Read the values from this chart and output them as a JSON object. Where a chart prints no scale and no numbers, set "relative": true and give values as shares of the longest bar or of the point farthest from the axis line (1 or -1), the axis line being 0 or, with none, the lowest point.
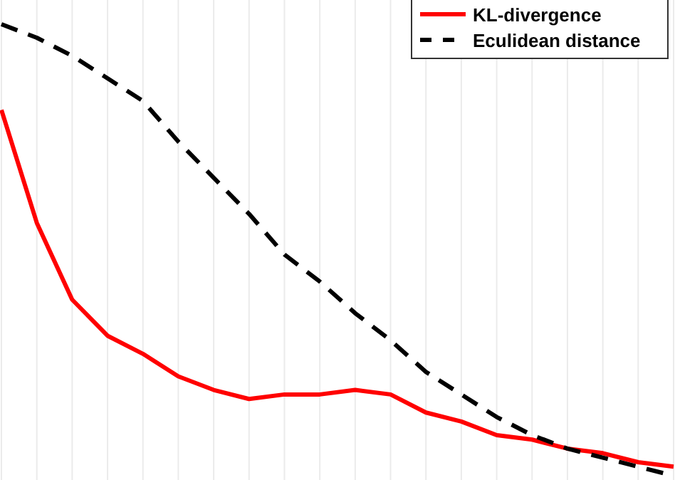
{
  "chart_data": {
    "type": "line",
    "relative": true,
    "grid": true,
    "legend": "top right",
    "categories": [
      null,
      null,
      null,
      null,
      null,
      null,
      null,
      null,
      null,
      null,
      null,
      null,
      null,
      null,
      null,
      null,
      null,
      null,
      null,
      null
    ],
    "series": [
      {
        "name": "KL-divergence",
        "color": "#ff0000",
        "line_style": "solid",
        "values": [
          0.81,
          0.56,
          0.39,
          0.31,
          0.27,
          0.22,
          0.19,
          0.17,
          0.18,
          0.18,
          0.19,
          0.18,
          0.14,
          0.12,
          0.09,
          0.08,
          0.06,
          0.05,
          0.03,
          0.02
        ]
      },
      {
        "name": "Eculidean distance",
        "color": "#000000",
        "line_style": "dashed",
        "values": [
          1.0,
          0.97,
          0.93,
          0.88,
          0.83,
          0.74,
          0.66,
          0.58,
          0.49,
          0.43,
          0.36,
          0.3,
          0.23,
          0.18,
          0.13,
          0.09,
          0.06,
          0.04,
          0.02,
          0.0
        ]
      }
    ]
  }
}
